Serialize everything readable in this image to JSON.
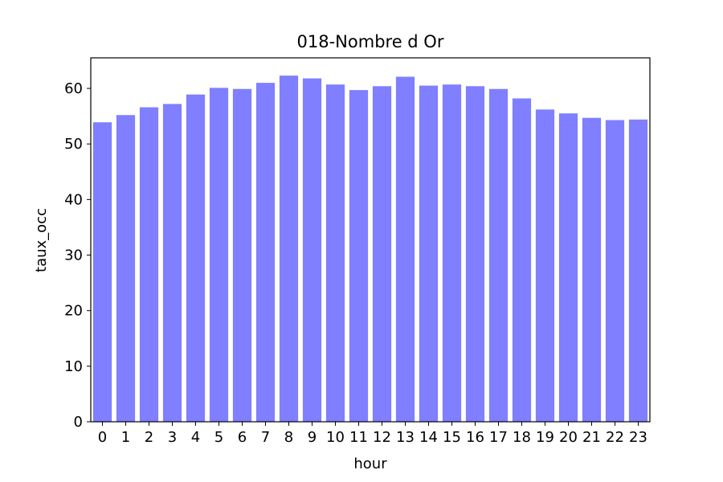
{
  "chart_data": {
    "type": "bar",
    "title": "018-Nombre d Or",
    "xlabel": "hour",
    "ylabel": "taux_occ",
    "categories": [
      "0",
      "1",
      "2",
      "3",
      "4",
      "5",
      "6",
      "7",
      "8",
      "9",
      "10",
      "11",
      "12",
      "13",
      "14",
      "15",
      "16",
      "17",
      "18",
      "19",
      "20",
      "21",
      "22",
      "23"
    ],
    "values": [
      53.9,
      55.2,
      56.6,
      57.2,
      58.9,
      60.1,
      59.9,
      61.0,
      62.3,
      61.8,
      60.7,
      59.7,
      60.4,
      62.1,
      60.5,
      60.7,
      60.4,
      59.9,
      58.2,
      56.2,
      55.5,
      54.7,
      54.3,
      54.4
    ],
    "ylim": [
      0,
      65.5
    ],
    "yticks": [
      0,
      10,
      20,
      30,
      40,
      50,
      60
    ],
    "grid": false,
    "bar_color": "#7f7fff"
  }
}
